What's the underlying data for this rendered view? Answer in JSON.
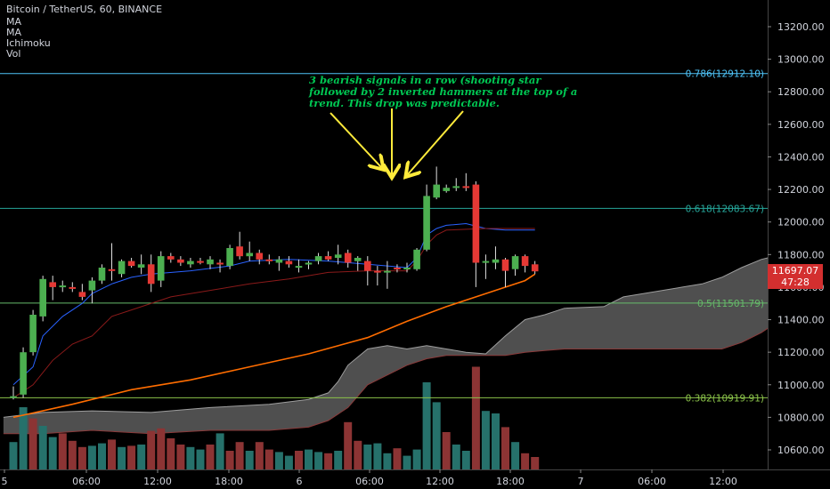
{
  "header": {
    "title": "Bitcoin / TetherUS, 60, BINANCE",
    "indicators": [
      "MA",
      "MA",
      "Ichimoku",
      "Vol"
    ]
  },
  "annotation": {
    "lines": [
      "3 bearish signals in a row (shooting star",
      "followed by 2 inverted hammers at the top of a",
      "trend. This drop was predictable."
    ],
    "color": "#00c853",
    "arrow_color": "#ffeb3b"
  },
  "price_tag": {
    "value": "11697.07",
    "countdown": "47:28",
    "color": "#d32f2f"
  },
  "colors": {
    "up": "#4caf50",
    "down": "#e53935",
    "ma_fast": "#ff6d00",
    "cloud": "#707070",
    "fib_786": "#4fc3f7",
    "fib_618": "#26a69a",
    "fib_5": "#66bb6a",
    "fib_382": "#8bc34a",
    "vol_up": "#26716b",
    "vol_down": "#8c3434"
  },
  "chart_data": {
    "type": "candlestick",
    "title": "Bitcoin / TetherUS, 60, BINANCE",
    "price_ticks": [
      "13200.00",
      "13000.00",
      "12800.00",
      "12600.00",
      "12400.00",
      "12200.00",
      "12000.00",
      "11800.00",
      "11600.00",
      "11400.00",
      "11200.00",
      "11000.00",
      "10800.00",
      "10600.00"
    ],
    "time_ticks": [
      "5",
      "06:00",
      "12:00",
      "18:00",
      "6",
      "06:00",
      "12:00",
      "18:00",
      "7",
      "06:00",
      "12:00"
    ],
    "ylim": [
      10480,
      13300
    ],
    "fib_levels": [
      {
        "label": "0.786(12912.10)",
        "price": 12912.1
      },
      {
        "label": "0.618(12083.67)",
        "price": 12083.67
      },
      {
        "label": "0.5(11501.79)",
        "price": 11501.79
      },
      {
        "label": "0.382(10919.91)",
        "price": 10919.91
      }
    ],
    "candles": [
      {
        "o": 10930,
        "h": 10990,
        "l": 10910,
        "c": 10930
      },
      {
        "o": 10940,
        "h": 11230,
        "l": 10920,
        "c": 11200
      },
      {
        "o": 11200,
        "h": 11460,
        "l": 11180,
        "c": 11430
      },
      {
        "o": 11420,
        "h": 11670,
        "l": 11390,
        "c": 11650
      },
      {
        "o": 11630,
        "h": 11670,
        "l": 11520,
        "c": 11600
      },
      {
        "o": 11610,
        "h": 11640,
        "l": 11570,
        "c": 11610
      },
      {
        "o": 11600,
        "h": 11630,
        "l": 11570,
        "c": 11590
      },
      {
        "o": 11570,
        "h": 11620,
        "l": 11520,
        "c": 11540
      },
      {
        "o": 11580,
        "h": 11660,
        "l": 11500,
        "c": 11640
      },
      {
        "o": 11640,
        "h": 11740,
        "l": 11620,
        "c": 11720
      },
      {
        "o": 11710,
        "h": 11870,
        "l": 11640,
        "c": 11700
      },
      {
        "o": 11680,
        "h": 11770,
        "l": 11660,
        "c": 11760
      },
      {
        "o": 11760,
        "h": 11780,
        "l": 11720,
        "c": 11730
      },
      {
        "o": 11720,
        "h": 11800,
        "l": 11680,
        "c": 11740
      },
      {
        "o": 11740,
        "h": 11800,
        "l": 11570,
        "c": 11620
      },
      {
        "o": 11640,
        "h": 11820,
        "l": 11600,
        "c": 11790
      },
      {
        "o": 11790,
        "h": 11810,
        "l": 11750,
        "c": 11770
      },
      {
        "o": 11770,
        "h": 11790,
        "l": 11730,
        "c": 11750
      },
      {
        "o": 11740,
        "h": 11780,
        "l": 11720,
        "c": 11760
      },
      {
        "o": 11760,
        "h": 11780,
        "l": 11740,
        "c": 11750
      },
      {
        "o": 11740,
        "h": 11790,
        "l": 11710,
        "c": 11770
      },
      {
        "o": 11750,
        "h": 11770,
        "l": 11690,
        "c": 11740
      },
      {
        "o": 11730,
        "h": 11860,
        "l": 11710,
        "c": 11840
      },
      {
        "o": 11850,
        "h": 11940,
        "l": 11770,
        "c": 11790
      },
      {
        "o": 11790,
        "h": 11880,
        "l": 11760,
        "c": 11810
      },
      {
        "o": 11810,
        "h": 11830,
        "l": 11740,
        "c": 11770
      },
      {
        "o": 11770,
        "h": 11800,
        "l": 11740,
        "c": 11760
      },
      {
        "o": 11750,
        "h": 11790,
        "l": 11700,
        "c": 11770
      },
      {
        "o": 11760,
        "h": 11790,
        "l": 11720,
        "c": 11740
      },
      {
        "o": 11720,
        "h": 11770,
        "l": 11690,
        "c": 11730
      },
      {
        "o": 11740,
        "h": 11760,
        "l": 11710,
        "c": 11750
      },
      {
        "o": 11760,
        "h": 11810,
        "l": 11740,
        "c": 11790
      },
      {
        "o": 11790,
        "h": 11820,
        "l": 11760,
        "c": 11770
      },
      {
        "o": 11780,
        "h": 11860,
        "l": 11740,
        "c": 11800
      },
      {
        "o": 11810,
        "h": 11830,
        "l": 11720,
        "c": 11750
      },
      {
        "o": 11760,
        "h": 11790,
        "l": 11700,
        "c": 11780
      },
      {
        "o": 11760,
        "h": 11790,
        "l": 11610,
        "c": 11700
      },
      {
        "o": 11700,
        "h": 11730,
        "l": 11610,
        "c": 11690
      },
      {
        "o": 11690,
        "h": 11760,
        "l": 11590,
        "c": 11700
      },
      {
        "o": 11720,
        "h": 11740,
        "l": 11690,
        "c": 11710
      },
      {
        "o": 11710,
        "h": 11750,
        "l": 11690,
        "c": 11720
      },
      {
        "o": 11710,
        "h": 11840,
        "l": 11700,
        "c": 11830
      },
      {
        "o": 11830,
        "h": 12230,
        "l": 11820,
        "c": 12160
      },
      {
        "o": 12150,
        "h": 12340,
        "l": 12140,
        "c": 12230
      },
      {
        "o": 12190,
        "h": 12230,
        "l": 12180,
        "c": 12210
      },
      {
        "o": 12210,
        "h": 12270,
        "l": 12190,
        "c": 12220
      },
      {
        "o": 12220,
        "h": 12300,
        "l": 12190,
        "c": 12210
      },
      {
        "o": 12230,
        "h": 12250,
        "l": 11600,
        "c": 11750
      },
      {
        "o": 11760,
        "h": 11800,
        "l": 11650,
        "c": 11760
      },
      {
        "o": 11750,
        "h": 11850,
        "l": 11710,
        "c": 11770
      },
      {
        "o": 11770,
        "h": 11780,
        "l": 11600,
        "c": 11700
      },
      {
        "o": 11710,
        "h": 11800,
        "l": 11670,
        "c": 11790
      },
      {
        "o": 11790,
        "h": 11800,
        "l": 11690,
        "c": 11730
      },
      {
        "o": 11740,
        "h": 11760,
        "l": 11680,
        "c": 11697
      }
    ],
    "volume": [
      {
        "v": 44,
        "up": true
      },
      {
        "v": 100,
        "up": true
      },
      {
        "v": 82,
        "up": false
      },
      {
        "v": 70,
        "up": true
      },
      {
        "v": 52,
        "up": true
      },
      {
        "v": 58,
        "up": false
      },
      {
        "v": 46,
        "up": false
      },
      {
        "v": 36,
        "up": false
      },
      {
        "v": 38,
        "up": true
      },
      {
        "v": 42,
        "up": true
      },
      {
        "v": 48,
        "up": false
      },
      {
        "v": 36,
        "up": true
      },
      {
        "v": 38,
        "up": false
      },
      {
        "v": 40,
        "up": true
      },
      {
        "v": 62,
        "up": false
      },
      {
        "v": 66,
        "up": false
      },
      {
        "v": 50,
        "up": false
      },
      {
        "v": 40,
        "up": false
      },
      {
        "v": 36,
        "up": true
      },
      {
        "v": 32,
        "up": true
      },
      {
        "v": 40,
        "up": false
      },
      {
        "v": 58,
        "up": true
      },
      {
        "v": 30,
        "up": false
      },
      {
        "v": 44,
        "up": false
      },
      {
        "v": 30,
        "up": true
      },
      {
        "v": 44,
        "up": false
      },
      {
        "v": 32,
        "up": false
      },
      {
        "v": 28,
        "up": true
      },
      {
        "v": 22,
        "up": true
      },
      {
        "v": 30,
        "up": false
      },
      {
        "v": 32,
        "up": true
      },
      {
        "v": 28,
        "up": true
      },
      {
        "v": 26,
        "up": false
      },
      {
        "v": 30,
        "up": true
      },
      {
        "v": 76,
        "up": false
      },
      {
        "v": 46,
        "up": false
      },
      {
        "v": 40,
        "up": true
      },
      {
        "v": 42,
        "up": true
      },
      {
        "v": 26,
        "up": true
      },
      {
        "v": 34,
        "up": false
      },
      {
        "v": 22,
        "up": true
      },
      {
        "v": 32,
        "up": true
      },
      {
        "v": 140,
        "up": true
      },
      {
        "v": 108,
        "up": true
      },
      {
        "v": 60,
        "up": false
      },
      {
        "v": 40,
        "up": true
      },
      {
        "v": 30,
        "up": true
      },
      {
        "v": 165,
        "up": false
      },
      {
        "v": 94,
        "up": true
      },
      {
        "v": 90,
        "up": true
      },
      {
        "v": 68,
        "up": false
      },
      {
        "v": 44,
        "up": true
      },
      {
        "v": 26,
        "up": false
      },
      {
        "v": 20,
        "up": false
      }
    ]
  }
}
